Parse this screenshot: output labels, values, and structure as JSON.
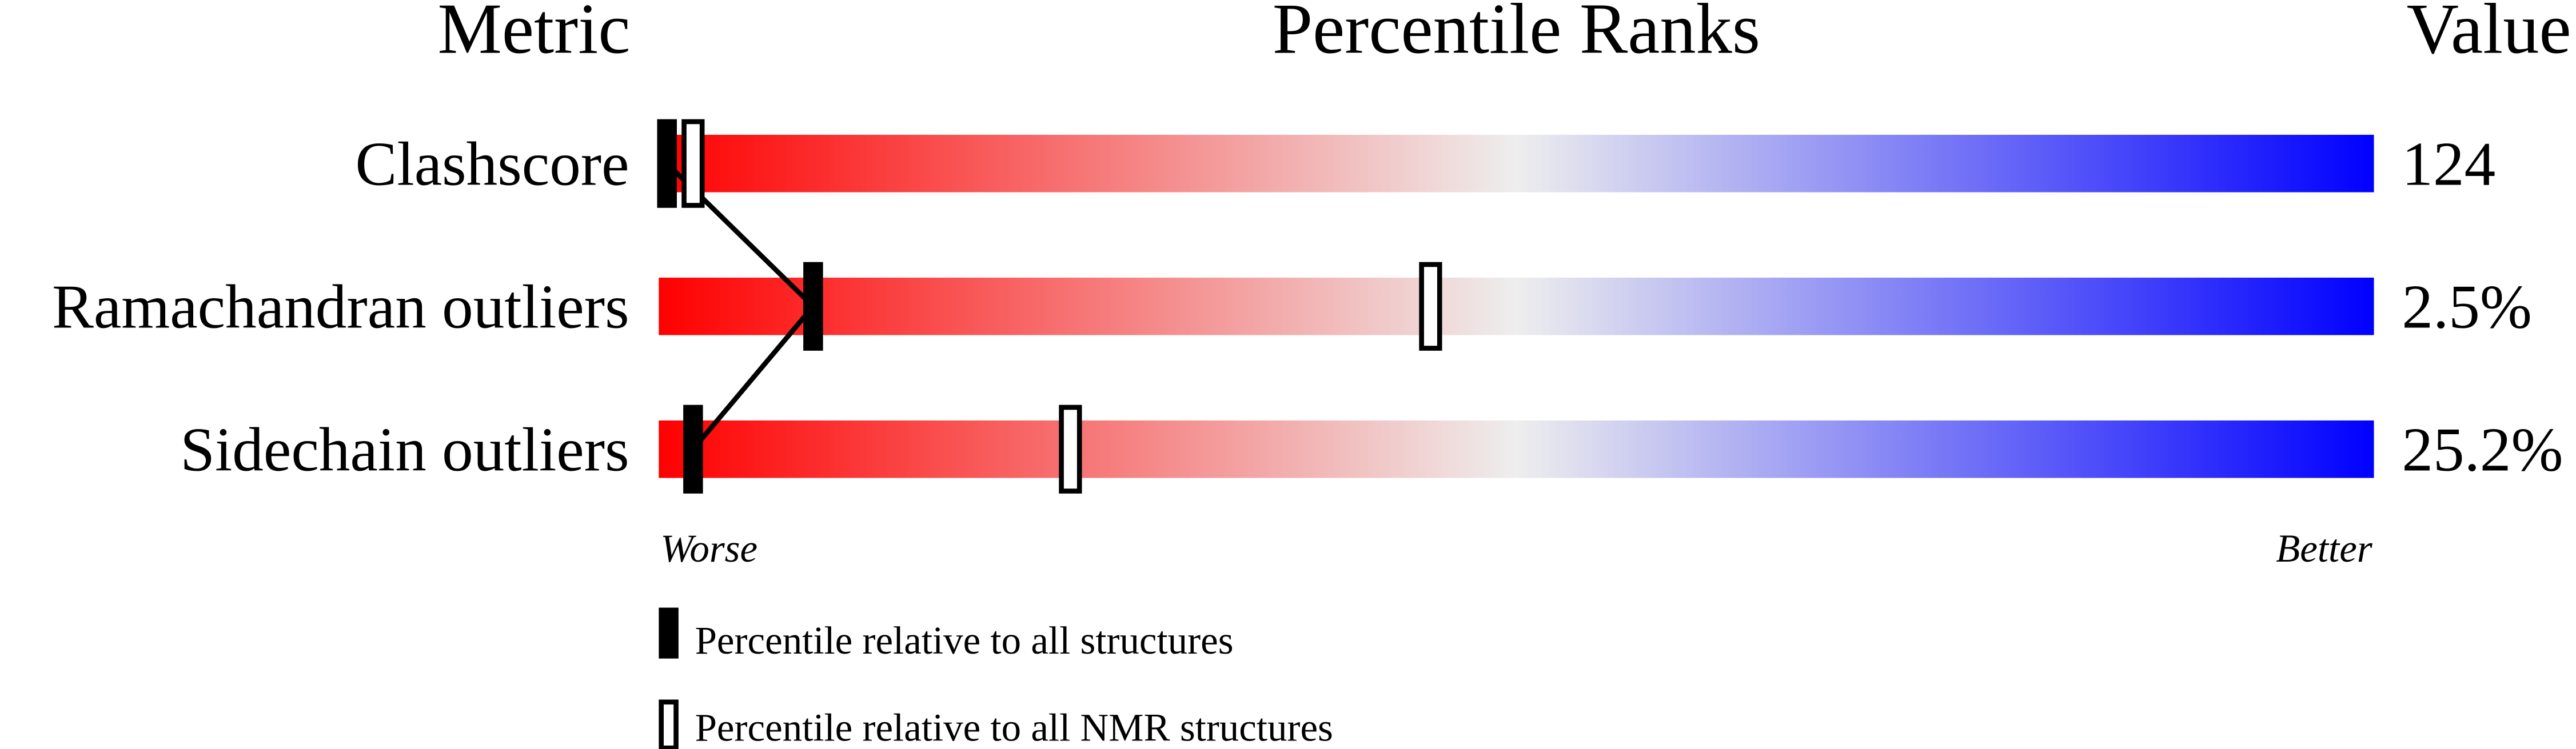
{
  "chart_data": {
    "type": "percentile-slider",
    "headers": {
      "metric": "Metric",
      "ranks": "Percentile Ranks",
      "value": "Value"
    },
    "xlim": [
      0,
      100
    ],
    "axis": {
      "worse": "Worse",
      "better": "Better"
    },
    "gradient_colors": {
      "worse": "#ff0000",
      "middle": "#eeeeee",
      "better": "#0000ff"
    },
    "rows": [
      {
        "metric": "Clashscore",
        "value": "124",
        "percentile_all": 0,
        "percentile_nmr": 2
      },
      {
        "metric": "Ramachandran outliers",
        "value": "2.5%",
        "percentile_all": 9,
        "percentile_nmr": 45
      },
      {
        "metric": "Sidechain outliers",
        "value": "25.2%",
        "percentile_all": 2,
        "percentile_nmr": 24
      }
    ],
    "legend": {
      "all": "Percentile relative to all structures",
      "nmr": "Percentile relative to all NMR structures"
    }
  }
}
